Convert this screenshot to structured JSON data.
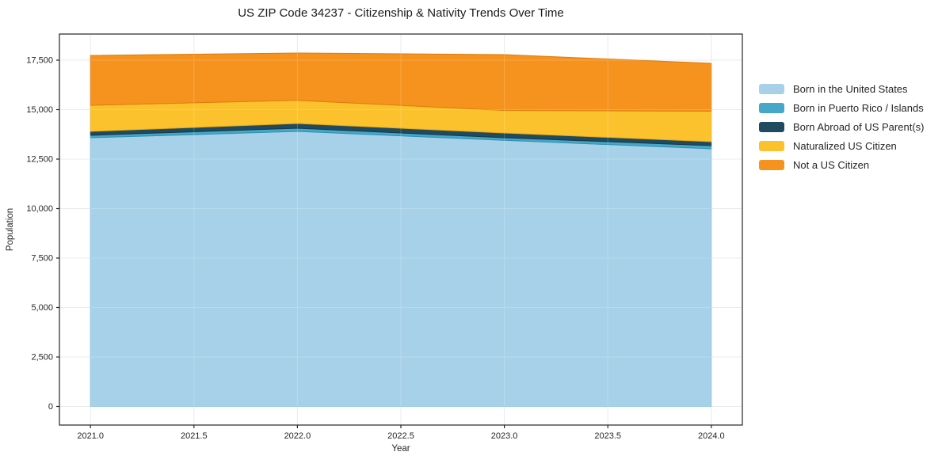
{
  "chart_data": {
    "type": "area",
    "stacked": true,
    "title": "US ZIP Code 34237 - Citizenship & Nativity Trends Over Time",
    "xlabel": "Year",
    "ylabel": "Population",
    "x": [
      2021,
      2022,
      2023,
      2024
    ],
    "series": [
      {
        "name": "Born in the United States",
        "fill": "#a6d1e8",
        "edge": "#86bedd",
        "values": [
          13580,
          13900,
          13450,
          13020
        ]
      },
      {
        "name": "Born in Puerto Rico / Islands",
        "fill": "#45a8c8",
        "edge": "#338faf",
        "values": [
          120,
          160,
          130,
          160
        ]
      },
      {
        "name": "Born Abroad of US Parent(s)",
        "fill": "#1f4a5f",
        "edge": "#15394b",
        "values": [
          200,
          240,
          240,
          200
        ]
      },
      {
        "name": "Naturalized US Citizen",
        "fill": "#fcc22d",
        "edge": "#e7a912",
        "values": [
          1320,
          1170,
          1140,
          1540
        ]
      },
      {
        "name": "Not a US Citizen",
        "fill": "#f6921e",
        "edge": "#dc7d0d",
        "values": [
          2520,
          2390,
          2820,
          2420
        ]
      }
    ],
    "totals": [
      17740,
      17860,
      17780,
      17340
    ],
    "xlim": [
      2020.85,
      2024.15
    ],
    "ylim": [
      -940,
      18820
    ],
    "xticks": {
      "values": [
        2021.0,
        2021.5,
        2022.0,
        2022.5,
        2023.0,
        2023.5,
        2024.0
      ],
      "labels": [
        "2021.0",
        "2021.5",
        "2022.0",
        "2022.5",
        "2023.0",
        "2023.5",
        "2024.0"
      ]
    },
    "yticks": {
      "values": [
        0,
        2500,
        5000,
        7500,
        10000,
        12500,
        15000,
        17500
      ],
      "labels": [
        "0",
        "2,500",
        "5,000",
        "7,500",
        "10,000",
        "12,500",
        "15,000",
        "17,500"
      ]
    },
    "grid": true,
    "legend_position": "right-outside"
  }
}
